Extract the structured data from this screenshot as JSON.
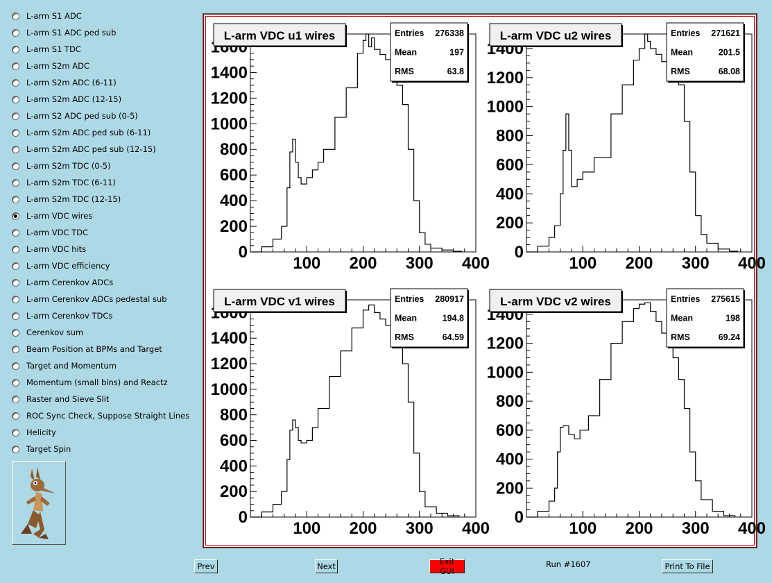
{
  "menu": {
    "items": [
      {
        "label": "L-arm S1 ADC",
        "checked": false
      },
      {
        "label": "L-arm S1 ADC ped sub",
        "checked": false
      },
      {
        "label": "L-arm S1 TDC",
        "checked": false
      },
      {
        "label": "L-arm S2m ADC",
        "checked": false
      },
      {
        "label": "L-arm S2m ADC (6-11)",
        "checked": false
      },
      {
        "label": "L-arm S2m ADC (12-15)",
        "checked": false
      },
      {
        "label": "L-arm S2 ADC ped sub (0-5)",
        "checked": false
      },
      {
        "label": "L-arm S2m ADC ped sub (6-11)",
        "checked": false
      },
      {
        "label": "L-arm S2m ADC ped sub (12-15)",
        "checked": false
      },
      {
        "label": "L-arm S2m TDC (0-5)",
        "checked": false
      },
      {
        "label": "L-arm S2m TDC (6-11)",
        "checked": false
      },
      {
        "label": "L-arm S2m TDC (12-15)",
        "checked": false
      },
      {
        "label": "L-arm VDC wires",
        "checked": true
      },
      {
        "label": "L-arm VDC TDC",
        "checked": false
      },
      {
        "label": "L-arm VDC hits",
        "checked": false
      },
      {
        "label": "L-arm VDC efficiency",
        "checked": false
      },
      {
        "label": "L-arm Cerenkov ADCs",
        "checked": false
      },
      {
        "label": "L-arm Cerenkov ADCs pedestal sub",
        "checked": false
      },
      {
        "label": "L-arm Cerenkov TDCs",
        "checked": false
      },
      {
        "label": "Cerenkov sum",
        "checked": false
      },
      {
        "label": "Beam Position at BPMs and Target",
        "checked": false
      },
      {
        "label": "Target and Momentum",
        "checked": false
      },
      {
        "label": "Momentum (small bins) and Reactz",
        "checked": false
      },
      {
        "label": "Raster and Sieve Slit",
        "checked": false
      },
      {
        "label": "ROC Sync Check, Suppose Straight Lines",
        "checked": false
      },
      {
        "label": "Helicity",
        "checked": false
      },
      {
        "label": "Target Spin",
        "checked": false
      }
    ]
  },
  "logo": {
    "icon": "wile-e-coyote-icon"
  },
  "buttons": {
    "prev": "Prev",
    "next": "Next",
    "exit": "Exit GUI",
    "print": "Print To File",
    "exit_color": "#ff0000"
  },
  "run_label": "Run #1607",
  "chart_data": [
    {
      "type": "histogram",
      "title": "L-arm VDC u1 wires",
      "stats": {
        "entries_label": "Entries",
        "entries": "276338",
        "mean_label": "Mean",
        "mean": "197",
        "rms_label": "RMS",
        "rms": "63.8"
      },
      "xlim": [
        0,
        400
      ],
      "ylim": [
        0,
        1700
      ],
      "xticks": [
        "100",
        "200",
        "300",
        "400"
      ],
      "yticks": [
        "0",
        "200",
        "400",
        "600",
        "800",
        "1000",
        "1200",
        "1400",
        "1600"
      ],
      "x": [
        0,
        20,
        40,
        55,
        65,
        70,
        75,
        80,
        85,
        90,
        100,
        110,
        120,
        130,
        150,
        170,
        190,
        200,
        205,
        210,
        215,
        220,
        230,
        240,
        250,
        260,
        270,
        280,
        290,
        300,
        310,
        320,
        340,
        360,
        375
      ],
      "y": [
        0,
        40,
        100,
        200,
        500,
        780,
        880,
        700,
        580,
        530,
        580,
        640,
        700,
        800,
        1050,
        1280,
        1550,
        1650,
        1700,
        1600,
        1670,
        1580,
        1540,
        1500,
        1400,
        1300,
        1150,
        800,
        400,
        150,
        60,
        30,
        15,
        5,
        0
      ]
    },
    {
      "type": "histogram",
      "title": "L-arm VDC u2 wires",
      "stats": {
        "entries_label": "Entries",
        "entries": "271621",
        "mean_label": "Mean",
        "mean": "201.5",
        "rms_label": "RMS",
        "rms": "68.08"
      },
      "xlim": [
        0,
        400
      ],
      "ylim": [
        0,
        1500
      ],
      "xticks": [
        "100",
        "200",
        "300",
        "400"
      ],
      "yticks": [
        "0",
        "200",
        "400",
        "600",
        "800",
        "1000",
        "1200",
        "1400"
      ],
      "x": [
        0,
        20,
        40,
        50,
        60,
        65,
        70,
        75,
        80,
        90,
        100,
        120,
        150,
        170,
        190,
        200,
        210,
        215,
        220,
        230,
        240,
        250,
        260,
        270,
        280,
        290,
        300,
        310,
        320,
        340,
        360,
        375
      ],
      "y": [
        0,
        40,
        100,
        180,
        400,
        700,
        950,
        700,
        450,
        500,
        550,
        650,
        950,
        1150,
        1320,
        1400,
        1500,
        1450,
        1400,
        1360,
        1310,
        1250,
        1220,
        1150,
        900,
        550,
        250,
        120,
        60,
        20,
        5,
        0
      ]
    },
    {
      "type": "histogram",
      "title": "L-arm VDC v1 wires",
      "stats": {
        "entries_label": "Entries",
        "entries": "280917",
        "mean_label": "Mean",
        "mean": "194.8",
        "rms_label": "RMS",
        "rms": "64.59"
      },
      "xlim": [
        0,
        400
      ],
      "ylim": [
        0,
        1700
      ],
      "xticks": [
        "100",
        "200",
        "300",
        "400"
      ],
      "yticks": [
        "0",
        "200",
        "400",
        "600",
        "800",
        "1000",
        "1200",
        "1400",
        "1600"
      ],
      "x": [
        0,
        20,
        40,
        55,
        65,
        70,
        75,
        80,
        85,
        90,
        100,
        110,
        120,
        140,
        160,
        180,
        200,
        210,
        220,
        230,
        240,
        250,
        260,
        270,
        280,
        290,
        300,
        310,
        330,
        350,
        370
      ],
      "y": [
        0,
        40,
        100,
        200,
        450,
        680,
        760,
        700,
        600,
        580,
        600,
        700,
        850,
        1100,
        1300,
        1480,
        1620,
        1660,
        1600,
        1550,
        1500,
        1450,
        1350,
        1200,
        900,
        500,
        200,
        80,
        30,
        10,
        0
      ]
    },
    {
      "type": "histogram",
      "title": "L-arm VDC v2 wires",
      "stats": {
        "entries_label": "Entries",
        "entries": "275615",
        "mean_label": "Mean",
        "mean": "198",
        "rms_label": "RMS",
        "rms": "69.24"
      },
      "xlim": [
        0,
        400
      ],
      "ylim": [
        0,
        1500
      ],
      "xticks": [
        "100",
        "200",
        "300",
        "400"
      ],
      "yticks": [
        "0",
        "200",
        "400",
        "600",
        "800",
        "1000",
        "1200",
        "1400"
      ],
      "x": [
        0,
        20,
        40,
        50,
        55,
        60,
        65,
        75,
        85,
        95,
        110,
        130,
        150,
        170,
        190,
        200,
        210,
        220,
        230,
        240,
        250,
        260,
        270,
        280,
        290,
        300,
        310,
        330,
        350,
        370
      ],
      "y": [
        0,
        40,
        110,
        200,
        450,
        620,
        630,
        570,
        540,
        600,
        700,
        950,
        1200,
        1350,
        1440,
        1470,
        1480,
        1420,
        1350,
        1270,
        1200,
        1100,
        950,
        750,
        450,
        250,
        120,
        40,
        10,
        0
      ]
    }
  ]
}
